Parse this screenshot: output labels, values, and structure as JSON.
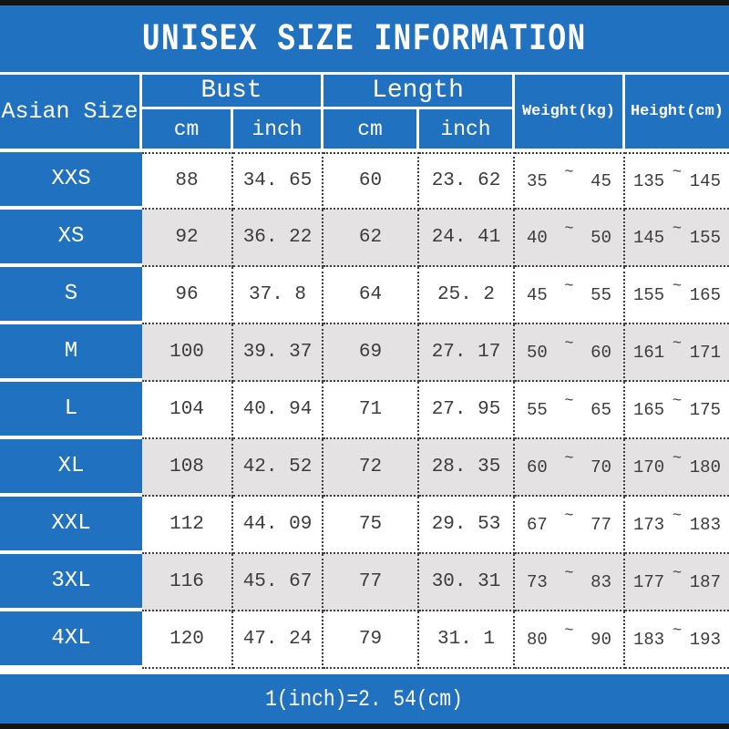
{
  "title": "UNISEX SIZE INFORMATION",
  "colors": {
    "accent_blue": "#2171c1",
    "alt_row_gray": "#e4e2e3",
    "text_dark": "#3c3c3c"
  },
  "header": {
    "size_col": "Asian Size",
    "bust": {
      "label": "Bust",
      "sub": [
        "cm",
        "inch"
      ]
    },
    "length": {
      "label": "Length",
      "sub": [
        "cm",
        "inch"
      ]
    },
    "weight": "Weight(kg)",
    "height": "Height(cm)"
  },
  "tilde": "~",
  "rows": [
    {
      "size": "XXS",
      "bust_cm": "88",
      "bust_inch": "34. 65",
      "len_cm": "60",
      "len_inch": "23. 62",
      "weight_min": "35",
      "weight_max": "45",
      "height_min": "135",
      "height_max": "145"
    },
    {
      "size": "XS",
      "bust_cm": "92",
      "bust_inch": "36. 22",
      "len_cm": "62",
      "len_inch": "24. 41",
      "weight_min": "40",
      "weight_max": "50",
      "height_min": "145",
      "height_max": "155"
    },
    {
      "size": "S",
      "bust_cm": "96",
      "bust_inch": "37. 8",
      "len_cm": "64",
      "len_inch": "25. 2",
      "weight_min": "45",
      "weight_max": "55",
      "height_min": "155",
      "height_max": "165"
    },
    {
      "size": "M",
      "bust_cm": "100",
      "bust_inch": "39. 37",
      "len_cm": "69",
      "len_inch": "27. 17",
      "weight_min": "50",
      "weight_max": "60",
      "height_min": "161",
      "height_max": "171"
    },
    {
      "size": "L",
      "bust_cm": "104",
      "bust_inch": "40. 94",
      "len_cm": "71",
      "len_inch": "27. 95",
      "weight_min": "55",
      "weight_max": "65",
      "height_min": "165",
      "height_max": "175"
    },
    {
      "size": "XL",
      "bust_cm": "108",
      "bust_inch": "42. 52",
      "len_cm": "72",
      "len_inch": "28. 35",
      "weight_min": "60",
      "weight_max": "70",
      "height_min": "170",
      "height_max": "180"
    },
    {
      "size": "XXL",
      "bust_cm": "112",
      "bust_inch": "44. 09",
      "len_cm": "75",
      "len_inch": "29. 53",
      "weight_min": "67",
      "weight_max": "77",
      "height_min": "173",
      "height_max": "183"
    },
    {
      "size": "3XL",
      "bust_cm": "116",
      "bust_inch": "45. 67",
      "len_cm": "77",
      "len_inch": "30. 31",
      "weight_min": "73",
      "weight_max": "83",
      "height_min": "177",
      "height_max": "187"
    },
    {
      "size": "4XL",
      "bust_cm": "120",
      "bust_inch": "47. 24",
      "len_cm": "79",
      "len_inch": "31. 1",
      "weight_min": "80",
      "weight_max": "90",
      "height_min": "183",
      "height_max": "193"
    }
  ],
  "footer": {
    "note": "1(inch)=2. 54(cm)"
  },
  "chart_data": {
    "type": "table",
    "title": "UNISEX SIZE INFORMATION",
    "columns": [
      "Asian Size",
      "Bust cm",
      "Bust inch",
      "Length cm",
      "Length inch",
      "Weight(kg)",
      "Height(cm)"
    ],
    "rows": [
      [
        "XXS",
        88,
        34.65,
        60,
        23.62,
        "35~45",
        "135~145"
      ],
      [
        "XS",
        92,
        36.22,
        62,
        24.41,
        "40~50",
        "145~155"
      ],
      [
        "S",
        96,
        37.8,
        64,
        25.2,
        "45~55",
        "155~165"
      ],
      [
        "M",
        100,
        39.37,
        69,
        27.17,
        "50~60",
        "161~171"
      ],
      [
        "L",
        104,
        40.94,
        71,
        27.95,
        "55~65",
        "165~175"
      ],
      [
        "XL",
        108,
        42.52,
        72,
        28.35,
        "60~70",
        "170~180"
      ],
      [
        "XXL",
        112,
        44.09,
        75,
        29.53,
        "67~77",
        "173~183"
      ],
      [
        "3XL",
        116,
        45.67,
        77,
        30.31,
        "73~83",
        "177~187"
      ],
      [
        "4XL",
        120,
        47.24,
        79,
        31.1,
        "80~90",
        "183~193"
      ]
    ],
    "note": "1(inch)=2.54(cm)"
  }
}
